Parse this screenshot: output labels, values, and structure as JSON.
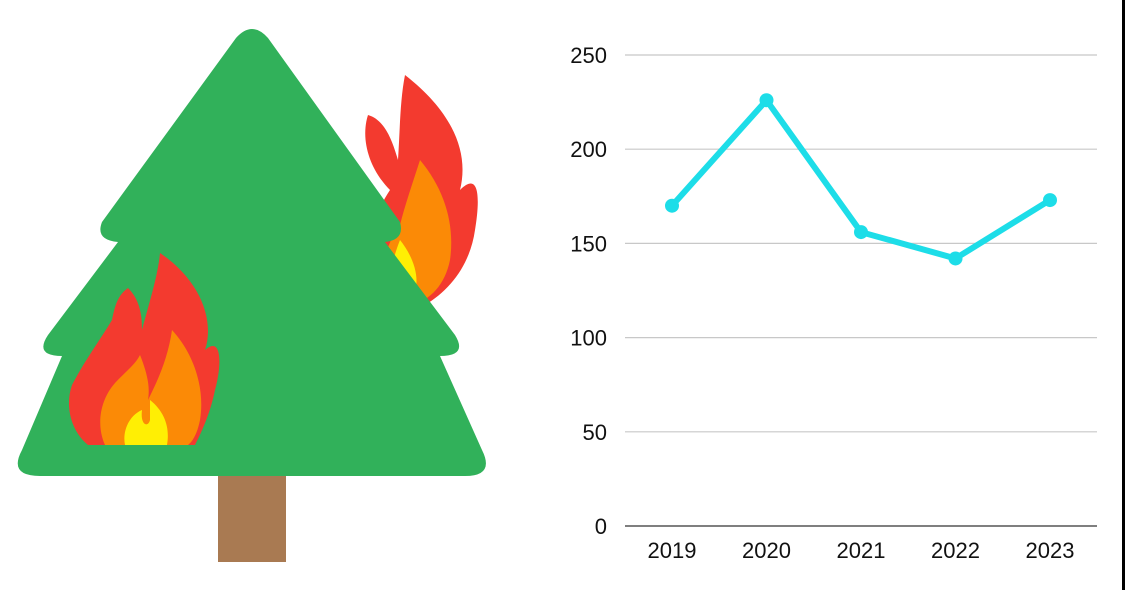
{
  "illustration": {
    "icon": "burning-tree-icon",
    "colors": {
      "tree": "#31b15a",
      "trunk": "#a97a52",
      "flame_outer": "#f33a2f",
      "flame_middle": "#fb8a06",
      "flame_inner": "#ffef04"
    }
  },
  "chart_data": {
    "type": "line",
    "x": [
      "2019",
      "2020",
      "2021",
      "2022",
      "2023"
    ],
    "series": [
      {
        "values": [
          170,
          226,
          156,
          142,
          173
        ],
        "color": "#1ddde8"
      }
    ],
    "yticks": [
      0,
      50,
      100,
      150,
      200,
      250
    ],
    "ylim": [
      0,
      250
    ],
    "grid": true,
    "legend": "none",
    "colors": {
      "grid": "#c8c8c8",
      "axis": "#555555",
      "text": "#111111"
    }
  }
}
